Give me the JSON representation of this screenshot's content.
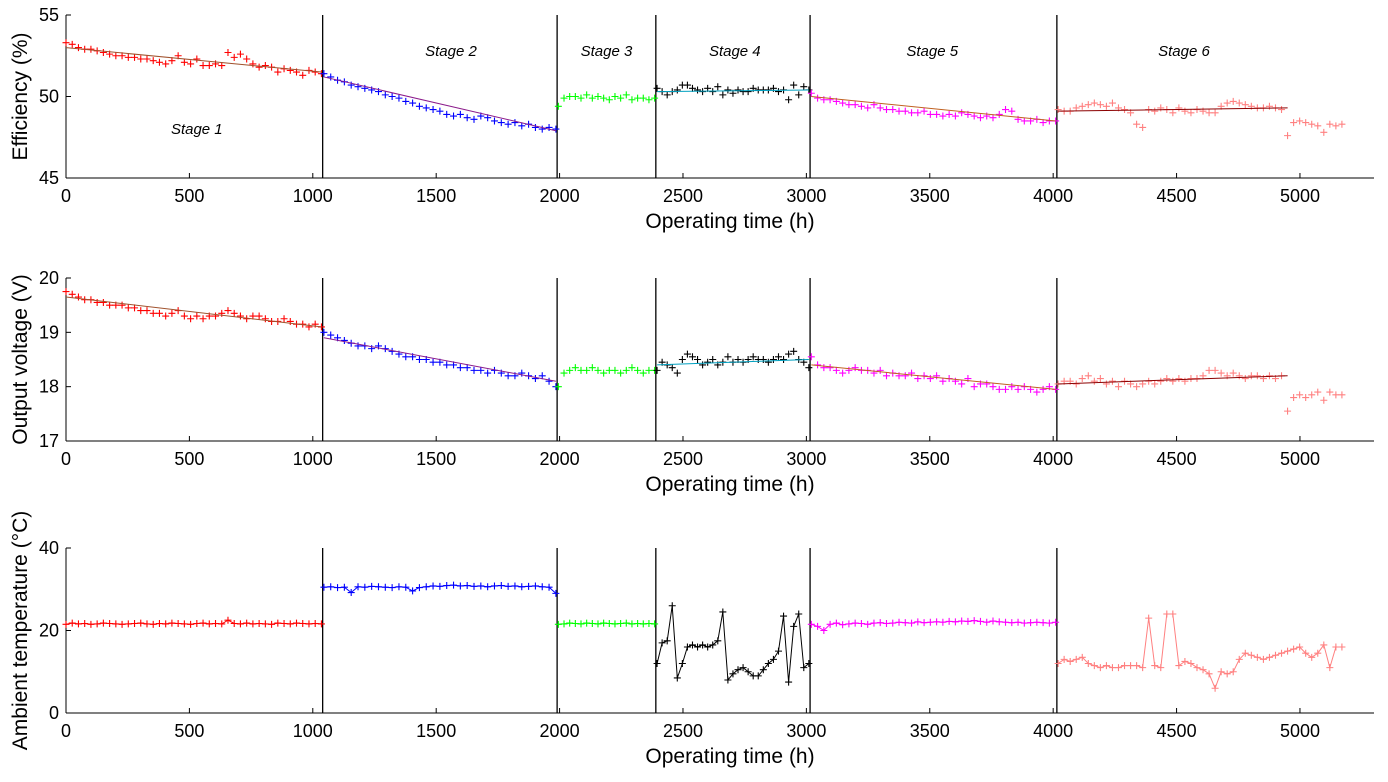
{
  "colors": {
    "stage1": "#ff0000",
    "stage2": "#0000ff",
    "stage3": "#00ff00",
    "stage4": "#000000",
    "stage5": "#ff00ff",
    "stage6": "#ff8080",
    "fit_stage1": "#a0522d",
    "fit_stage2": "#8b1a8b",
    "fit_stage4": "#00a0c0",
    "fit_stage5": "#c06020",
    "fit_stage6": "#8b0000"
  },
  "chart_data": [
    {
      "type": "scatter",
      "xlabel": "Operating time (h)",
      "ylabel": "Efficiency (%)",
      "xlim": [
        0,
        5300
      ],
      "ylim": [
        45,
        55
      ],
      "xticks": [
        0,
        500,
        1000,
        1500,
        2000,
        2500,
        3000,
        3500,
        4000,
        4500,
        5000
      ],
      "yticks": [
        45,
        50,
        55
      ],
      "stage_boundaries": [
        1040,
        1990,
        2390,
        3015,
        4015
      ],
      "stage_labels": [
        {
          "text": "Stage 1",
          "x": 530,
          "y": 47.7
        },
        {
          "text": "Stage 2",
          "x": 1560,
          "y": 52.5
        },
        {
          "text": "Stage 3",
          "x": 2190,
          "y": 52.5
        },
        {
          "text": "Stage 4",
          "x": 2710,
          "y": 52.5
        },
        {
          "text": "Stage 5",
          "x": 3510,
          "y": 52.5
        },
        {
          "text": "Stage 6",
          "x": 4530,
          "y": 52.5
        }
      ],
      "series": [
        {
          "stage": 1,
          "x_start": 0,
          "x_end": 1035,
          "points": [
            53.3,
            53.2,
            53.0,
            52.9,
            52.9,
            52.8,
            52.7,
            52.6,
            52.5,
            52.5,
            52.4,
            52.4,
            52.3,
            52.3,
            52.2,
            52.1,
            52.0,
            52.2,
            52.5,
            52.1,
            52.0,
            52.3,
            51.9,
            51.9,
            52.0,
            51.9,
            52.7,
            52.4,
            52.6,
            52.3,
            52.0,
            51.8,
            51.9,
            51.8,
            51.5,
            51.7,
            51.6,
            51.5,
            51.3,
            51.6,
            51.5,
            51.4
          ],
          "fit": [
            53.0,
            51.5
          ]
        },
        {
          "stage": 2,
          "x_start": 1045,
          "x_end": 1985,
          "points": [
            51.4,
            51.2,
            51.0,
            50.9,
            50.7,
            50.6,
            50.5,
            50.4,
            50.3,
            50.1,
            50.0,
            49.9,
            49.7,
            49.6,
            49.4,
            49.3,
            49.2,
            49.1,
            48.9,
            48.8,
            48.9,
            48.7,
            48.6,
            48.8,
            48.7,
            48.5,
            48.4,
            48.3,
            48.4,
            48.2,
            48.3,
            48.1,
            48.0,
            48.1,
            48.0
          ],
          "fit": [
            51.2,
            47.9
          ]
        },
        {
          "stage": 3,
          "x_start": 1995,
          "x_end": 2385,
          "points": [
            49.4,
            49.9,
            50.0,
            50.0,
            49.9,
            50.1,
            49.9,
            50.0,
            49.9,
            49.8,
            50.0,
            49.9,
            50.1,
            49.8,
            49.9,
            49.9,
            49.8,
            49.9
          ],
          "fit": null
        },
        {
          "stage": 4,
          "x_start": 2395,
          "x_end": 3010,
          "points": [
            50.5,
            50.3,
            50.1,
            50.3,
            50.4,
            50.7,
            50.7,
            50.5,
            50.4,
            50.3,
            50.5,
            50.3,
            50.6,
            50.1,
            50.4,
            50.2,
            50.4,
            50.3,
            50.3,
            50.5,
            50.4,
            50.4,
            50.4,
            50.5,
            50.3,
            50.4,
            49.8,
            50.7,
            50.1,
            50.6,
            50.4
          ],
          "fit": [
            50.3,
            50.4
          ]
        },
        {
          "stage": 5,
          "x_start": 3020,
          "x_end": 4010,
          "points": [
            50.2,
            49.9,
            49.8,
            49.8,
            49.7,
            49.6,
            49.5,
            49.5,
            49.4,
            49.3,
            49.5,
            49.3,
            49.2,
            49.2,
            49.1,
            49.1,
            49.0,
            49.0,
            49.1,
            48.9,
            48.9,
            48.8,
            48.9,
            48.8,
            49.0,
            48.9,
            48.8,
            48.7,
            48.8,
            48.7,
            48.9,
            49.2,
            49.1,
            48.6,
            48.5,
            48.5,
            48.6,
            48.4,
            48.5,
            48.5
          ],
          "fit": [
            50.0,
            48.5
          ]
        },
        {
          "stage": 6,
          "x_start": 4020,
          "x_end": 5170,
          "points": [
            49.2,
            49.1,
            49.1,
            49.3,
            49.4,
            49.5,
            49.6,
            49.5,
            49.4,
            49.6,
            49.3,
            49.2,
            49.0,
            48.3,
            48.1,
            49.2,
            49.1,
            49.3,
            49.2,
            49.0,
            49.3,
            49.1,
            49.0,
            49.2,
            49.1,
            49.0,
            49.0,
            49.4,
            49.6,
            49.7,
            49.6,
            49.5,
            49.4,
            49.3,
            49.3,
            49.4,
            49.3,
            49.2,
            47.6,
            48.4,
            48.5,
            48.4,
            48.3,
            48.2,
            47.8,
            48.3,
            48.2,
            48.3
          ],
          "fit": [
            49.1,
            49.3
          ],
          "fit_x_end": 4950
        }
      ]
    },
    {
      "type": "scatter",
      "xlabel": "Operating time (h)",
      "ylabel": "Output voltage (V)",
      "xlim": [
        0,
        5300
      ],
      "ylim": [
        17,
        20
      ],
      "xticks": [
        0,
        500,
        1000,
        1500,
        2000,
        2500,
        3000,
        3500,
        4000,
        4500,
        5000
      ],
      "yticks": [
        17,
        18,
        19,
        20
      ],
      "stage_boundaries": [
        1040,
        1990,
        2390,
        3015,
        4015
      ],
      "series": [
        {
          "stage": 1,
          "x_start": 0,
          "x_end": 1035,
          "points": [
            19.75,
            19.7,
            19.65,
            19.6,
            19.6,
            19.55,
            19.55,
            19.5,
            19.5,
            19.5,
            19.45,
            19.45,
            19.4,
            19.4,
            19.35,
            19.35,
            19.3,
            19.35,
            19.4,
            19.3,
            19.25,
            19.3,
            19.25,
            19.3,
            19.3,
            19.35,
            19.4,
            19.35,
            19.3,
            19.25,
            19.3,
            19.3,
            19.25,
            19.2,
            19.2,
            19.25,
            19.2,
            19.15,
            19.15,
            19.1,
            19.15,
            19.1
          ],
          "fit": [
            19.65,
            19.1
          ]
        },
        {
          "stage": 2,
          "x_start": 1045,
          "x_end": 1985,
          "points": [
            19.0,
            18.95,
            18.9,
            18.85,
            18.8,
            18.75,
            18.75,
            18.7,
            18.75,
            18.7,
            18.65,
            18.6,
            18.55,
            18.55,
            18.5,
            18.5,
            18.45,
            18.45,
            18.4,
            18.4,
            18.35,
            18.35,
            18.3,
            18.3,
            18.25,
            18.3,
            18.25,
            18.2,
            18.2,
            18.25,
            18.2,
            18.15,
            18.2,
            18.1,
            18.0
          ],
          "fit": [
            18.9,
            18.1
          ]
        },
        {
          "stage": 3,
          "x_start": 1995,
          "x_end": 2385,
          "points": [
            18.0,
            18.25,
            18.3,
            18.35,
            18.3,
            18.3,
            18.35,
            18.3,
            18.25,
            18.3,
            18.3,
            18.25,
            18.3,
            18.35,
            18.3,
            18.25,
            18.3,
            18.3
          ],
          "fit": null
        },
        {
          "stage": 4,
          "x_start": 2395,
          "x_end": 3010,
          "points": [
            18.3,
            18.45,
            18.4,
            18.35,
            18.25,
            18.5,
            18.6,
            18.55,
            18.5,
            18.4,
            18.45,
            18.5,
            18.4,
            18.45,
            18.55,
            18.45,
            18.5,
            18.45,
            18.5,
            18.55,
            18.5,
            18.5,
            18.45,
            18.5,
            18.55,
            18.5,
            18.6,
            18.65,
            18.5,
            18.45,
            18.35
          ],
          "fit": [
            18.4,
            18.5
          ]
        },
        {
          "stage": 5,
          "x_start": 3020,
          "x_end": 4010,
          "points": [
            18.55,
            18.4,
            18.35,
            18.35,
            18.3,
            18.25,
            18.3,
            18.35,
            18.3,
            18.3,
            18.25,
            18.3,
            18.2,
            18.25,
            18.2,
            18.2,
            18.25,
            18.15,
            18.2,
            18.15,
            18.2,
            18.1,
            18.15,
            18.1,
            18.05,
            18.15,
            18.0,
            18.05,
            18.05,
            18.0,
            17.95,
            17.95,
            18.0,
            17.95,
            18.0,
            17.95,
            17.9,
            17.95,
            18.0,
            17.95
          ],
          "fit": [
            18.4,
            17.95
          ]
        },
        {
          "stage": 6,
          "x_start": 4020,
          "x_end": 5170,
          "points": [
            18.05,
            18.1,
            18.1,
            18.05,
            18.15,
            18.2,
            18.1,
            18.15,
            18.05,
            18.1,
            18.0,
            18.1,
            18.05,
            18.0,
            18.05,
            18.1,
            18.05,
            18.1,
            18.15,
            18.1,
            18.15,
            18.1,
            18.15,
            18.15,
            18.2,
            18.3,
            18.3,
            18.25,
            18.2,
            18.25,
            18.2,
            18.15,
            18.2,
            18.2,
            18.15,
            18.2,
            18.15,
            18.2,
            17.55,
            17.8,
            17.85,
            17.8,
            17.85,
            17.9,
            17.75,
            17.9,
            17.85,
            17.85
          ],
          "fit": [
            18.05,
            18.2
          ],
          "fit_x_end": 4950
        }
      ]
    },
    {
      "type": "line",
      "xlabel": "Operating time (h)",
      "ylabel": "Ambient temperature (°C)",
      "xlim": [
        0,
        5300
      ],
      "ylim": [
        0,
        40
      ],
      "xticks": [
        0,
        500,
        1000,
        1500,
        2000,
        2500,
        3000,
        3500,
        4000,
        4500,
        5000
      ],
      "yticks": [
        0,
        20,
        40
      ],
      "stage_boundaries": [
        1040,
        1990,
        2390,
        3015,
        4015
      ],
      "series": [
        {
          "stage": 1,
          "x_start": 0,
          "x_end": 1035,
          "points": [
            21.5,
            21.8,
            21.6,
            21.7,
            21.5,
            21.6,
            21.8,
            21.7,
            21.6,
            21.5,
            21.6,
            21.7,
            21.8,
            21.6,
            21.5,
            21.7,
            21.6,
            21.8,
            21.7,
            21.6,
            21.5,
            21.7,
            21.8,
            21.6,
            21.7,
            21.6,
            22.5,
            21.7,
            21.6,
            21.8,
            21.6,
            21.7,
            21.6,
            21.5,
            21.8,
            21.7,
            21.6,
            21.8,
            21.7,
            21.6,
            21.7,
            21.6
          ]
        },
        {
          "stage": 2,
          "x_start": 1045,
          "x_end": 1985,
          "points": [
            30.5,
            30.6,
            30.4,
            30.5,
            29.2,
            30.6,
            30.5,
            30.7,
            30.6,
            30.5,
            30.4,
            30.6,
            30.5,
            29.6,
            30.4,
            30.6,
            30.8,
            30.7,
            30.9,
            31.0,
            30.8,
            30.9,
            30.7,
            30.8,
            30.6,
            30.8,
            30.9,
            30.7,
            30.8,
            30.6,
            30.7,
            30.8,
            30.6,
            30.5,
            29.0
          ]
        },
        {
          "stage": 3,
          "x_start": 1995,
          "x_end": 2385,
          "points": [
            21.5,
            21.6,
            21.8,
            21.7,
            21.6,
            21.8,
            21.7,
            21.6,
            21.8,
            21.7,
            21.6,
            21.7,
            21.8,
            21.6,
            21.7,
            21.6,
            21.7,
            21.6
          ]
        },
        {
          "stage": 4,
          "x_start": 2395,
          "x_end": 3010,
          "points": [
            12.0,
            17.0,
            17.5,
            26.0,
            8.5,
            12.0,
            16.0,
            16.5,
            16.0,
            16.5,
            16.0,
            16.5,
            17.5,
            24.5,
            8.0,
            9.5,
            10.5,
            11.0,
            10.0,
            9.0,
            9.0,
            10.5,
            12.0,
            13.0,
            15.0,
            23.5,
            7.5,
            21.0,
            24.0,
            11.0,
            12.0
          ]
        },
        {
          "stage": 5,
          "x_start": 3020,
          "x_end": 4010,
          "points": [
            21.5,
            21.0,
            20.0,
            21.5,
            21.8,
            21.4,
            21.6,
            21.8,
            21.7,
            21.5,
            21.8,
            21.9,
            21.7,
            21.8,
            22.0,
            21.9,
            21.8,
            22.1,
            21.9,
            22.0,
            22.1,
            22.0,
            22.2,
            22.1,
            22.3,
            22.2,
            22.4,
            22.2,
            22.0,
            22.3,
            22.1,
            22.0,
            21.9,
            22.0,
            21.8,
            21.9,
            22.0,
            21.9,
            21.8,
            22.0
          ]
        },
        {
          "stage": 6,
          "x_start": 4020,
          "x_end": 5170,
          "points": [
            12.0,
            13.0,
            12.5,
            13.0,
            13.5,
            12.0,
            11.5,
            11.0,
            11.5,
            11.0,
            11.0,
            11.5,
            11.5,
            11.5,
            11.0,
            23.0,
            11.5,
            11.0,
            24.0,
            24.0,
            11.5,
            12.5,
            12.0,
            11.0,
            10.5,
            9.5,
            6.0,
            10.0,
            9.5,
            10.0,
            13.0,
            14.5,
            14.0,
            13.5,
            13.0,
            13.5,
            14.0,
            14.5,
            15.0,
            15.5,
            16.0,
            14.5,
            13.5,
            14.5,
            16.5,
            11.0,
            16.0,
            16.0
          ]
        }
      ]
    }
  ]
}
